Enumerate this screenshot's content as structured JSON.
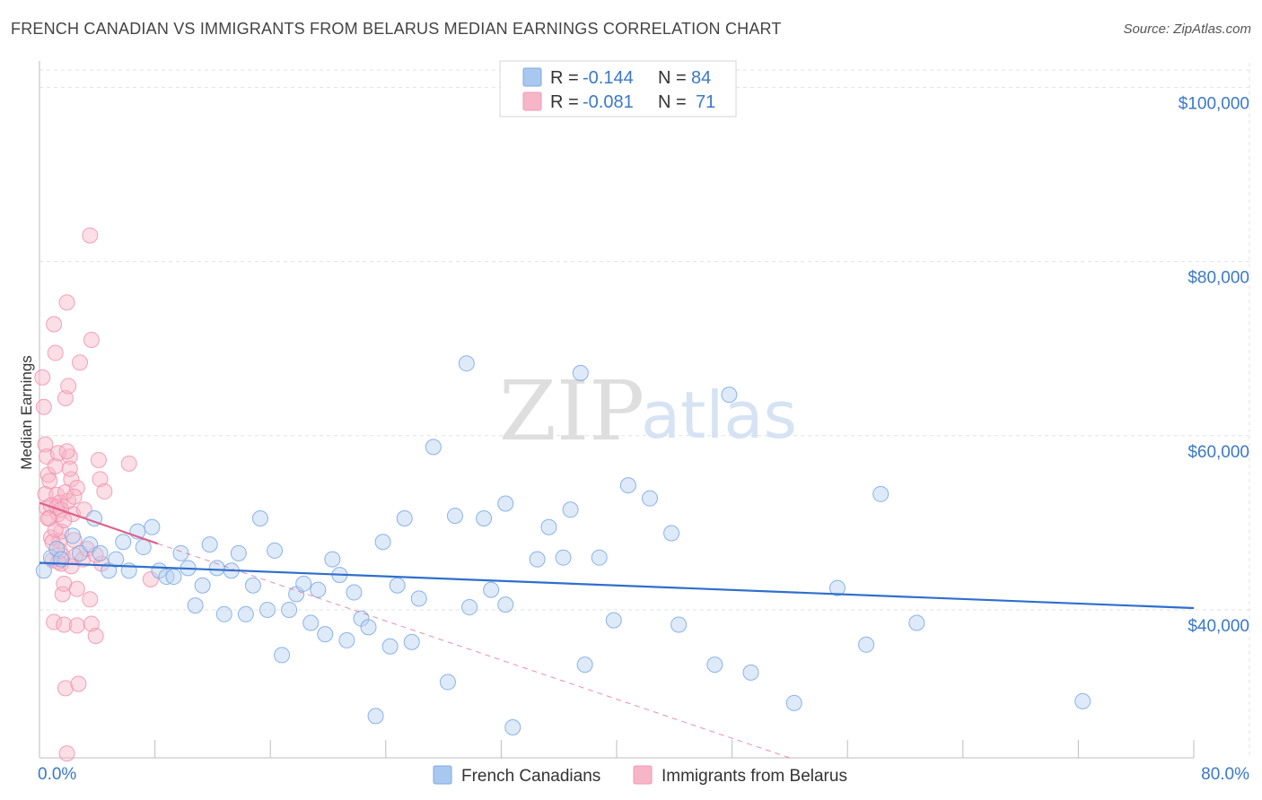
{
  "title": "FRENCH CANADIAN VS IMMIGRANTS FROM BELARUS MEDIAN EARNINGS CORRELATION CHART",
  "source": "Source: ZipAtlas.com",
  "watermark": {
    "part1": "ZIP",
    "part2": "atlas"
  },
  "legend_box": {
    "rows": [
      {
        "r_label": "R =",
        "r_value": "-0.144",
        "n_label": "N =",
        "n_value": "84",
        "color": "#a9c8ef"
      },
      {
        "r_label": "R =",
        "r_value": "-0.081",
        "n_label": "N =",
        "n_value": "71",
        "color": "#f7b6c8"
      }
    ]
  },
  "bottom_legend": {
    "items": [
      {
        "label": "French Canadians",
        "color": "#a9c8ef"
      },
      {
        "label": "Immigrants from Belarus",
        "color": "#f7b6c8"
      }
    ]
  },
  "chart_data": {
    "type": "scatter",
    "xlabel": "",
    "ylabel": "Median Earnings",
    "xlim": [
      0,
      80
    ],
    "ylim": [
      23000,
      102000
    ],
    "x_tick_labels": [
      "0.0%",
      "80.0%"
    ],
    "y_ticks": [
      40000,
      60000,
      80000,
      100000
    ],
    "y_tick_labels": [
      "$40,000",
      "$60,000",
      "$80,000",
      "$100,000"
    ],
    "grid": true,
    "colors": {
      "french": "#6fa3e4",
      "french_line": "#2f6fcd",
      "belarus": "#f08cab",
      "belarus_line": "#e0608a"
    },
    "series": [
      {
        "name": "French Canadians",
        "trend": {
          "x": [
            0,
            80
          ],
          "y": [
            45400,
            40200
          ]
        },
        "points": [
          [
            0.3,
            44500
          ],
          [
            0.8,
            46000
          ],
          [
            1.2,
            47000
          ],
          [
            1.5,
            45800
          ],
          [
            2.3,
            48500
          ],
          [
            2.8,
            46500
          ],
          [
            3.5,
            47500
          ],
          [
            3.8,
            50500
          ],
          [
            4.2,
            46500
          ],
          [
            4.8,
            44500
          ],
          [
            5.3,
            45800
          ],
          [
            5.8,
            47800
          ],
          [
            6.2,
            44500
          ],
          [
            6.8,
            49000
          ],
          [
            7.2,
            47200
          ],
          [
            7.8,
            49500
          ],
          [
            8.3,
            44500
          ],
          [
            8.8,
            43800
          ],
          [
            9.3,
            43800
          ],
          [
            9.8,
            46500
          ],
          [
            10.3,
            44800
          ],
          [
            10.8,
            40500
          ],
          [
            11.3,
            42800
          ],
          [
            11.8,
            47500
          ],
          [
            12.3,
            44800
          ],
          [
            12.8,
            39500
          ],
          [
            13.3,
            44500
          ],
          [
            13.8,
            46500
          ],
          [
            14.3,
            39500
          ],
          [
            14.8,
            42800
          ],
          [
            15.3,
            50500
          ],
          [
            15.8,
            40000
          ],
          [
            16.3,
            46800
          ],
          [
            16.8,
            34800
          ],
          [
            17.3,
            40000
          ],
          [
            17.8,
            41800
          ],
          [
            18.3,
            43000
          ],
          [
            18.8,
            38500
          ],
          [
            19.3,
            42300
          ],
          [
            19.8,
            37200
          ],
          [
            20.3,
            45800
          ],
          [
            20.8,
            44000
          ],
          [
            21.3,
            36500
          ],
          [
            21.8,
            42000
          ],
          [
            22.3,
            39000
          ],
          [
            22.8,
            38000
          ],
          [
            23.3,
            27800
          ],
          [
            23.8,
            47800
          ],
          [
            24.3,
            35800
          ],
          [
            24.8,
            42800
          ],
          [
            25.3,
            50500
          ],
          [
            25.8,
            36300
          ],
          [
            26.3,
            41300
          ],
          [
            27.3,
            58700
          ],
          [
            28.3,
            31700
          ],
          [
            28.8,
            50800
          ],
          [
            29.8,
            40300
          ],
          [
            29.6,
            68300
          ],
          [
            30.8,
            50500
          ],
          [
            31.3,
            42300
          ],
          [
            32.3,
            40600
          ],
          [
            32.3,
            52200
          ],
          [
            32.8,
            26500
          ],
          [
            34.5,
            45800
          ],
          [
            35.3,
            49500
          ],
          [
            36.3,
            46000
          ],
          [
            36.8,
            51500
          ],
          [
            37.8,
            33700
          ],
          [
            37.5,
            67200
          ],
          [
            38.8,
            46000
          ],
          [
            39.8,
            38800
          ],
          [
            40.8,
            54300
          ],
          [
            42.3,
            52800
          ],
          [
            43.8,
            48800
          ],
          [
            44.3,
            38300
          ],
          [
            46.8,
            33700
          ],
          [
            47.8,
            64700
          ],
          [
            49.3,
            32800
          ],
          [
            52.3,
            29300
          ],
          [
            55.3,
            42500
          ],
          [
            57.3,
            36000
          ],
          [
            58.3,
            53300
          ],
          [
            60.8,
            38500
          ],
          [
            72.3,
            29500
          ]
        ]
      },
      {
        "name": "Immigrants from Belarus",
        "trend": {
          "x": [
            0,
            8.2
          ],
          "y": [
            52300,
            47600
          ],
          "dashed_to": {
            "x": 52,
            "y": 23000
          }
        },
        "points": [
          [
            0.2,
            66700
          ],
          [
            0.3,
            63300
          ],
          [
            0.4,
            59000
          ],
          [
            0.5,
            57600
          ],
          [
            0.6,
            55500
          ],
          [
            0.4,
            53300
          ],
          [
            0.5,
            51700
          ],
          [
            0.7,
            50500
          ],
          [
            0.8,
            48300
          ],
          [
            0.9,
            45700
          ],
          [
            1.0,
            38600
          ],
          [
            1.1,
            56500
          ],
          [
            1.2,
            53200
          ],
          [
            1.3,
            51000
          ],
          [
            1.4,
            47900
          ],
          [
            1.5,
            45300
          ],
          [
            1.0,
            72800
          ],
          [
            1.1,
            69500
          ],
          [
            1.6,
            41800
          ],
          [
            1.7,
            38300
          ],
          [
            1.8,
            31000
          ],
          [
            1.9,
            23500
          ],
          [
            1.3,
            58000
          ],
          [
            1.4,
            52300
          ],
          [
            1.5,
            49000
          ],
          [
            1.6,
            46200
          ],
          [
            1.7,
            43000
          ],
          [
            1.8,
            64300
          ],
          [
            1.9,
            75300
          ],
          [
            2.0,
            65700
          ],
          [
            2.1,
            57600
          ],
          [
            2.2,
            55000
          ],
          [
            2.3,
            51000
          ],
          [
            2.4,
            48000
          ],
          [
            2.5,
            46200
          ],
          [
            2.6,
            42400
          ],
          [
            2.6,
            38200
          ],
          [
            2.7,
            31500
          ],
          [
            2.8,
            68400
          ],
          [
            3.1,
            51500
          ],
          [
            3.0,
            45800
          ],
          [
            3.3,
            47000
          ],
          [
            3.5,
            41200
          ],
          [
            3.6,
            38400
          ],
          [
            3.9,
            37000
          ],
          [
            3.5,
            83000
          ],
          [
            3.6,
            71000
          ],
          [
            4.1,
            57200
          ],
          [
            4.2,
            55000
          ],
          [
            4.5,
            53600
          ],
          [
            4.3,
            45300
          ],
          [
            6.2,
            56800
          ],
          [
            7.7,
            43500
          ],
          [
            0.8,
            52000
          ],
          [
            1.2,
            51800
          ],
          [
            1.5,
            51500
          ],
          [
            2.0,
            52500
          ],
          [
            1.3,
            45500
          ],
          [
            0.6,
            50500
          ],
          [
            1.8,
            53500
          ],
          [
            1.4,
            46800
          ],
          [
            2.2,
            45000
          ],
          [
            0.9,
            47800
          ],
          [
            2.6,
            54000
          ],
          [
            1.1,
            49200
          ],
          [
            2.4,
            53000
          ],
          [
            1.9,
            58200
          ],
          [
            0.7,
            54800
          ],
          [
            2.1,
            56200
          ],
          [
            1.7,
            50300
          ],
          [
            3.9,
            46300
          ]
        ]
      }
    ]
  }
}
